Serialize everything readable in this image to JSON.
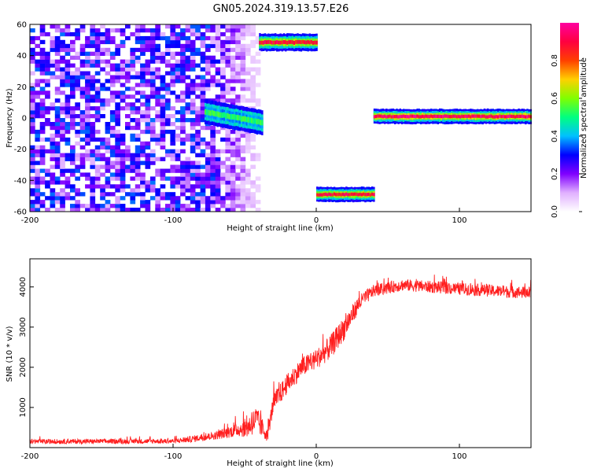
{
  "title": "GN05.2024.319.13.57.E26",
  "chart_data": [
    {
      "type": "heatmap",
      "xlabel": "Height of straight line (km)",
      "ylabel": "Frequency (Hz)",
      "xlim": [
        -200,
        150
      ],
      "ylim": [
        -60,
        60
      ],
      "xticks": [
        -200,
        -100,
        0,
        100
      ],
      "yticks": [
        -60,
        -40,
        -20,
        0,
        20,
        40,
        60
      ],
      "colorbar": {
        "label": "Normalized spectral amplitude",
        "range": [
          0,
          1
        ],
        "ticks": [
          "0.0",
          "0.2",
          "0.4",
          "0.6",
          "0.8"
        ],
        "colors": [
          "#ffffff",
          "#e0b0ff",
          "#8000ff",
          "#0000ff",
          "#00c0ff",
          "#00ff80",
          "#80ff00",
          "#ffd000",
          "#ff4000",
          "#ff0040",
          "#ff00a0"
        ]
      },
      "features": [
        {
          "name": "broadband noise",
          "x_range": [
            -200,
            -40
          ],
          "y_range": [
            -60,
            60
          ],
          "amplitude": 0.3
        },
        {
          "name": "line near 0 Hz (descending)",
          "x_range": [
            -78,
            -38
          ],
          "y_range": [
            -3,
            7
          ],
          "amplitude": 0.55
        },
        {
          "name": "line near +48 Hz",
          "x_range": [
            -40,
            0
          ],
          "y_range": [
            45,
            52
          ],
          "amplitude": 0.9
        },
        {
          "name": "line near -48 Hz",
          "x_range": [
            0,
            40
          ],
          "y_range": [
            -52,
            -46
          ],
          "amplitude": 0.9
        },
        {
          "name": "line near 0 Hz",
          "x_range": [
            40,
            150
          ],
          "y_range": [
            -2,
            4
          ],
          "amplitude": 0.95
        }
      ]
    },
    {
      "type": "line",
      "xlabel": "Height of straight line (km)",
      "ylabel": "SNR (10 * v/v)",
      "xlim": [
        -200,
        150
      ],
      "ylim": [
        0,
        4700
      ],
      "xticks": [
        -200,
        -100,
        0,
        100
      ],
      "yticks": [
        1000,
        2000,
        3000,
        4000
      ],
      "color": "#ff2020",
      "envelope": [
        {
          "x": -200,
          "y": 150,
          "noise": 120
        },
        {
          "x": -100,
          "y": 160,
          "noise": 120
        },
        {
          "x": -90,
          "y": 200,
          "noise": 150
        },
        {
          "x": -70,
          "y": 300,
          "noise": 200
        },
        {
          "x": -55,
          "y": 450,
          "noise": 350
        },
        {
          "x": -48,
          "y": 500,
          "noise": 500
        },
        {
          "x": -42,
          "y": 700,
          "noise": 700
        },
        {
          "x": -34,
          "y": 300,
          "noise": 300
        },
        {
          "x": -30,
          "y": 1100,
          "noise": 500
        },
        {
          "x": -20,
          "y": 1600,
          "noise": 500
        },
        {
          "x": -10,
          "y": 2000,
          "noise": 500
        },
        {
          "x": 0,
          "y": 2200,
          "noise": 500
        },
        {
          "x": 10,
          "y": 2500,
          "noise": 600
        },
        {
          "x": 20,
          "y": 3000,
          "noise": 600
        },
        {
          "x": 30,
          "y": 3600,
          "noise": 400
        },
        {
          "x": 40,
          "y": 3900,
          "noise": 300
        },
        {
          "x": 60,
          "y": 4050,
          "noise": 300
        },
        {
          "x": 100,
          "y": 3950,
          "noise": 300
        },
        {
          "x": 150,
          "y": 3850,
          "noise": 300
        }
      ]
    }
  ]
}
